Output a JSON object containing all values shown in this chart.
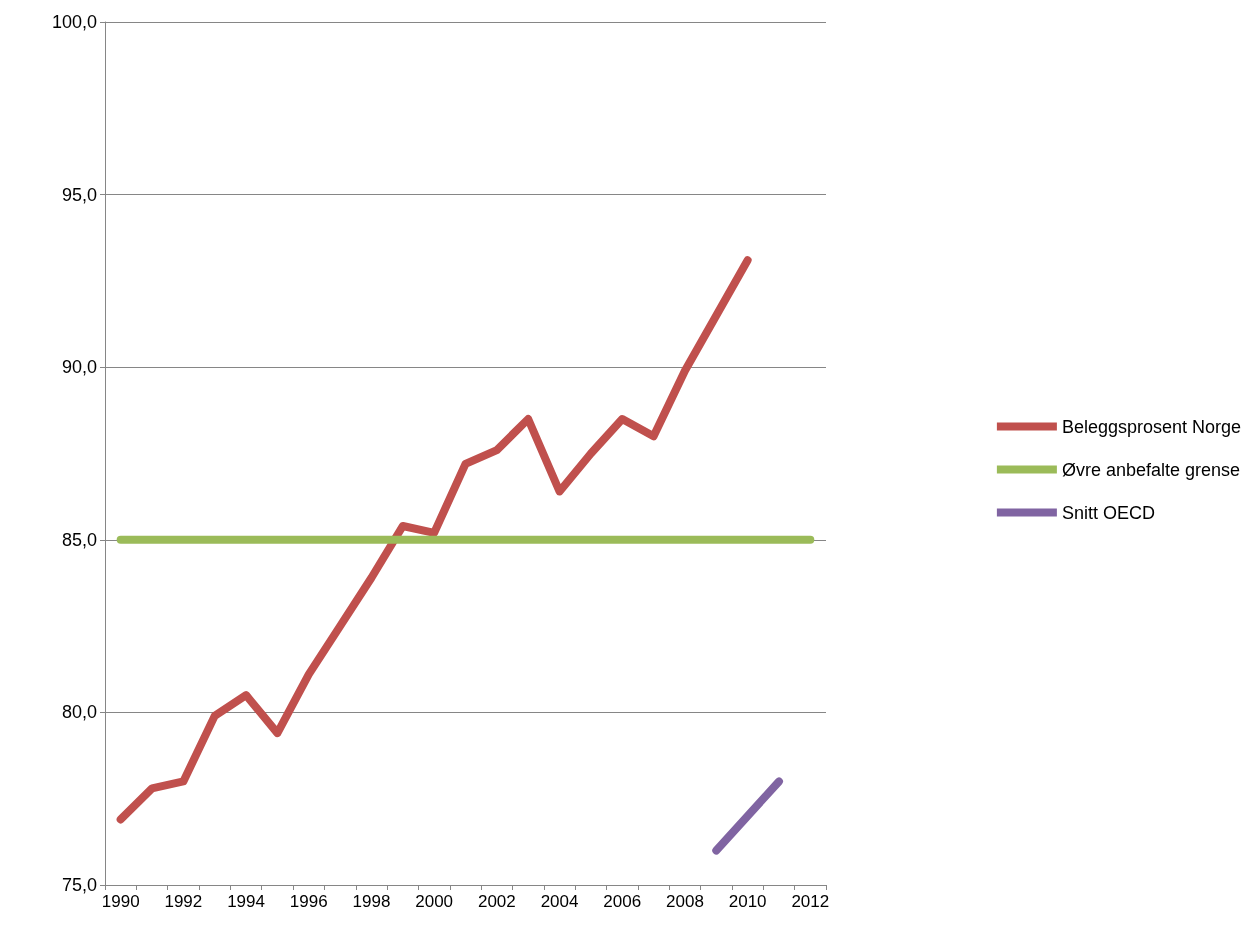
{
  "chart_data": {
    "type": "line",
    "categories": [
      "1990",
      null,
      "1992",
      null,
      "1994",
      null,
      "1996",
      null,
      "1998",
      null,
      "2000",
      null,
      "2002",
      null,
      "2004",
      null,
      "2006",
      null,
      "2008",
      null,
      "2010",
      null,
      "2012"
    ],
    "series": [
      {
        "name": "Beleggsprosent Norge",
        "color": "#c0504d",
        "values": [
          76.9,
          77.8,
          78.0,
          79.9,
          80.5,
          79.4,
          81.1,
          82.5,
          83.9,
          85.4,
          85.2,
          87.2,
          87.6,
          88.5,
          86.4,
          87.5,
          88.5,
          88.0,
          89.9,
          91.5,
          93.1,
          null,
          null
        ]
      },
      {
        "name": "Øvre anbefalte grense",
        "color": "#9bbb59",
        "values": [
          85,
          85,
          85,
          85,
          85,
          85,
          85,
          85,
          85,
          85,
          85,
          85,
          85,
          85,
          85,
          85,
          85,
          85,
          85,
          85,
          85,
          85,
          85
        ]
      },
      {
        "name": "Snitt OECD",
        "color": "#8064a2",
        "values": [
          null,
          null,
          null,
          null,
          null,
          null,
          null,
          null,
          null,
          null,
          null,
          null,
          null,
          null,
          null,
          null,
          null,
          null,
          null,
          76.0,
          77.0,
          78.0,
          null
        ]
      }
    ],
    "ylim": [
      75,
      100
    ],
    "yticks": [
      {
        "value": 75,
        "label": "75,0"
      },
      {
        "value": 80,
        "label": "80,0"
      },
      {
        "value": 85,
        "label": "85,0"
      },
      {
        "value": 90,
        "label": "90,0"
      },
      {
        "value": 95,
        "label": "95,0"
      },
      {
        "value": 100,
        "label": "100,0"
      }
    ],
    "grid": "y",
    "legend": "right",
    "marker": "none",
    "line_style": "solid"
  }
}
